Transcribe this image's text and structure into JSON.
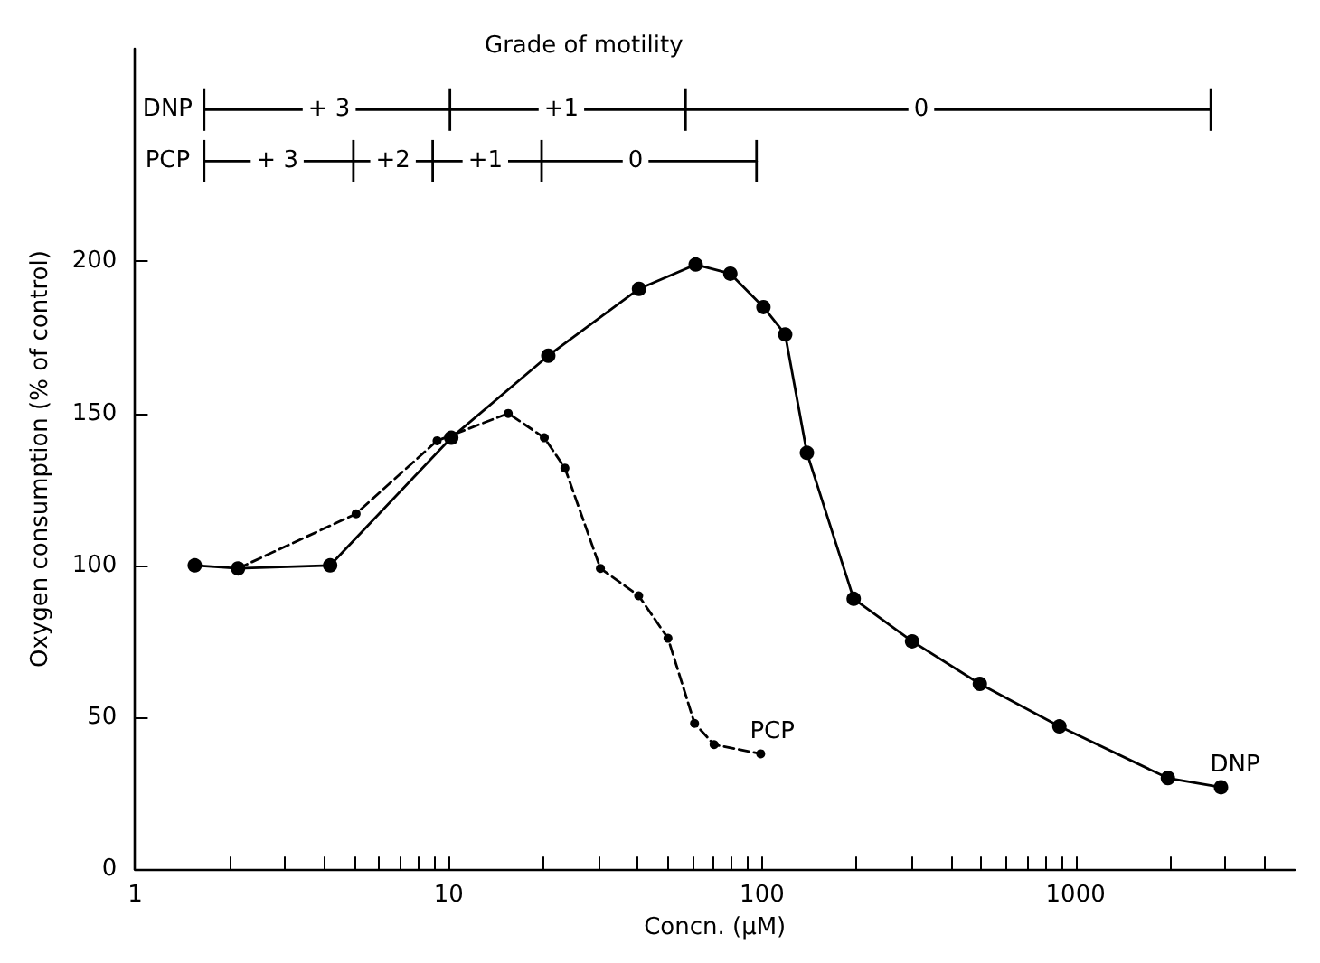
{
  "chart_data": {
    "type": "line",
    "title": "Grade of motility",
    "xlabel": "Concn. (μM)",
    "ylabel": "Oxygen consumption (% of control)",
    "log": "x",
    "grid": false,
    "legend": false,
    "xlim": [
      1,
      5000
    ],
    "ylim": [
      0,
      270
    ],
    "xticks": [
      1,
      {
        "value": 2,
        "label": null
      },
      {
        "value": 3,
        "label": null
      },
      {
        "value": 4,
        "label": null
      },
      {
        "value": 5,
        "label": null
      },
      {
        "value": 6,
        "label": null
      },
      {
        "value": 7,
        "label": null
      },
      {
        "value": 8,
        "label": null
      },
      {
        "value": 9,
        "label": null
      },
      10,
      {
        "value": 20,
        "label": null
      },
      {
        "value": 30,
        "label": null
      },
      {
        "value": 40,
        "label": null
      },
      {
        "value": 50,
        "label": null
      },
      {
        "value": 60,
        "label": null
      },
      {
        "value": 70,
        "label": null
      },
      {
        "value": 80,
        "label": null
      },
      {
        "value": 90,
        "label": null
      },
      100,
      {
        "value": 200,
        "label": null
      },
      {
        "value": 300,
        "label": null
      },
      {
        "value": 400,
        "label": null
      },
      {
        "value": 500,
        "label": null
      },
      {
        "value": 600,
        "label": null
      },
      {
        "value": 700,
        "label": null
      },
      {
        "value": 800,
        "label": null
      },
      {
        "value": 900,
        "label": null
      },
      1000,
      {
        "value": 2000,
        "label": null
      },
      {
        "value": 3000,
        "label": null
      },
      {
        "value": 4000,
        "label": null
      }
    ],
    "yticks": [
      0,
      50,
      100,
      150,
      200
    ],
    "series": [
      {
        "name": "DNP",
        "color": "#000000",
        "line_style": "solid",
        "marker": "circle",
        "x": [
          1.55,
          2.13,
          4.19,
          10.2,
          20.8,
          40.5,
          61.4,
          79.2,
          101,
          118.5,
          139,
          196,
          301,
          495,
          888,
          1970,
          2910
        ],
        "values": [
          100,
          99,
          100,
          142,
          169,
          191,
          199,
          196,
          185,
          176,
          137,
          89,
          75,
          61,
          47,
          30,
          27
        ]
      },
      {
        "name": "PCP",
        "color": "#000000",
        "line_style": "dashed",
        "marker": "circle",
        "x": [
          2.13,
          5.07,
          9.19,
          15.5,
          20.2,
          23.5,
          30.5,
          40.4,
          50.1,
          60.9,
          70.3,
          99
        ],
        "values": [
          99,
          117,
          141,
          150,
          142,
          132,
          99,
          90,
          76,
          48,
          41,
          38
        ]
      },
      {
        "color": "#000000",
        "line_style": "solid",
        "marker": "none",
        "x": [
          1.66,
          10.1,
          57,
          2700
        ],
        "values": [
          250,
          250,
          250,
          250
        ],
        "errors": [
          7,
          7,
          7,
          7
        ]
      },
      {
        "color": "#000000",
        "line_style": "solid",
        "marker": "none",
        "x": [
          1.66,
          4.97,
          8.9,
          19.8,
          96
        ],
        "values": [
          233,
          233,
          233,
          233,
          233
        ],
        "errors": [
          7,
          7,
          7,
          7,
          7
        ]
      }
    ],
    "annotations": [
      {
        "text": "DNP",
        "x": 1.27,
        "y": 250
      },
      {
        "text": "+ 3",
        "x": 4.16,
        "y": 250
      },
      {
        "text": "+1",
        "x": 22.9,
        "y": 250
      },
      {
        "text": "0",
        "x": 322,
        "y": 250
      },
      {
        "text": "PCP",
        "x": 1.27,
        "y": 233
      },
      {
        "text": "+ 3",
        "x": 2.84,
        "y": 233
      },
      {
        "text": "+2",
        "x": 6.65,
        "y": 233
      },
      {
        "text": "+1",
        "x": 13.1,
        "y": 233
      },
      {
        "text": "0",
        "x": 39.5,
        "y": 233
      }
    ]
  }
}
